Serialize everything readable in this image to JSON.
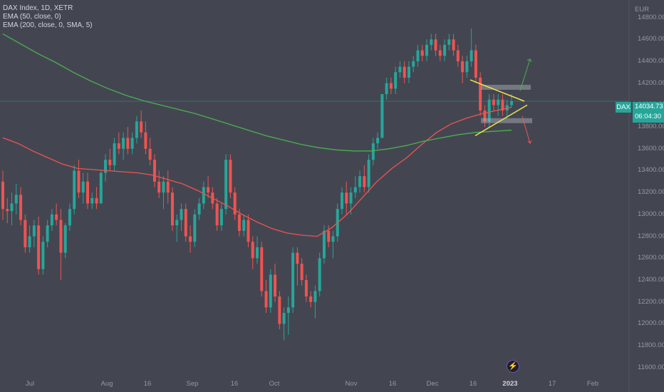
{
  "legend": {
    "symbol_line": "DAX Index, 1D, XETR",
    "ema_line": "EMA (50, close, 0)",
    "ema200_line": "EMA (200, close, 0, SMA, 5)"
  },
  "price_label": {
    "ticker": "DAX",
    "value": "14034.73",
    "countdown": "06:04:30"
  },
  "event_icon": "lightning-icon",
  "colors": {
    "background": "#434651",
    "up": "#26a69a",
    "down": "#ef5350",
    "ema50": "#ef5350",
    "ema200": "#4caf50",
    "pattern": "#f2e54b"
  },
  "chart_data": {
    "type": "candlestick",
    "unit": "EUR",
    "ylim": [
      11540,
      14960
    ],
    "y_ticks": [
      "14800.00",
      "14600.00",
      "14400.00",
      "14200.00",
      "14000.00",
      "13800.00",
      "13600.00",
      "13400.00",
      "13200.00",
      "13000.00",
      "12800.00",
      "12600.00",
      "12400.00",
      "12200.00",
      "12000.00",
      "11800.00",
      "11600.00"
    ],
    "x_ticks": [
      {
        "label": "Jul",
        "bold": false
      },
      {
        "label": "Aug",
        "bold": false
      },
      {
        "label": "16",
        "bold": false
      },
      {
        "label": "Sep",
        "bold": false
      },
      {
        "label": "16",
        "bold": false
      },
      {
        "label": "Oct",
        "bold": false
      },
      {
        "label": "Nov",
        "bold": false
      },
      {
        "label": "16",
        "bold": false
      },
      {
        "label": "Dec",
        "bold": false
      },
      {
        "label": "16",
        "bold": false
      },
      {
        "label": "2023",
        "bold": true
      },
      {
        "label": "17",
        "bold": false
      },
      {
        "label": "Feb",
        "bold": false
      }
    ],
    "ohlc": [
      [
        13300,
        13400,
        12950,
        13050
      ],
      [
        13050,
        13150,
        12920,
        13030
      ],
      [
        13030,
        13200,
        12900,
        13100
      ],
      [
        13100,
        13280,
        13000,
        13180
      ],
      [
        13180,
        13250,
        12900,
        12950
      ],
      [
        12950,
        13000,
        12650,
        12700
      ],
      [
        12700,
        12900,
        12650,
        12800
      ],
      [
        12800,
        12950,
        12700,
        12900
      ],
      [
        12900,
        12980,
        12450,
        12500
      ],
      [
        12500,
        12800,
        12450,
        12750
      ],
      [
        12750,
        12950,
        12700,
        12900
      ],
      [
        12900,
        13050,
        12850,
        13000
      ],
      [
        13000,
        13100,
        12900,
        12950
      ],
      [
        12950,
        13050,
        12400,
        12650
      ],
      [
        12650,
        12920,
        12600,
        12900
      ],
      [
        12900,
        13100,
        12850,
        13050
      ],
      [
        13050,
        13450,
        13000,
        13400
      ],
      [
        13400,
        13500,
        13150,
        13200
      ],
      [
        13200,
        13380,
        13100,
        13300
      ],
      [
        13300,
        13380,
        13050,
        13100
      ],
      [
        13100,
        13200,
        13050,
        13150
      ],
      [
        13150,
        13250,
        13050,
        13100
      ],
      [
        13100,
        13400,
        13100,
        13380
      ],
      [
        13380,
        13550,
        13300,
        13500
      ],
      [
        13500,
        13600,
        13400,
        13450
      ],
      [
        13450,
        13700,
        13400,
        13650
      ],
      [
        13650,
        13750,
        13550,
        13600
      ],
      [
        13600,
        13750,
        13500,
        13700
      ],
      [
        13700,
        13800,
        13550,
        13600
      ],
      [
        13600,
        13750,
        13550,
        13700
      ],
      [
        13700,
        13900,
        13650,
        13850
      ],
      [
        13850,
        13950,
        13700,
        13750
      ],
      [
        13750,
        13850,
        13550,
        13600
      ],
      [
        13600,
        13700,
        13450,
        13500
      ],
      [
        13500,
        13550,
        13250,
        13300
      ],
      [
        13300,
        13400,
        13150,
        13200
      ],
      [
        13200,
        13350,
        13050,
        13300
      ],
      [
        13300,
        13400,
        13100,
        13200
      ],
      [
        13200,
        13250,
        12850,
        12900
      ],
      [
        12900,
        13000,
        12750,
        12950
      ],
      [
        12950,
        13100,
        12850,
        13050
      ],
      [
        13050,
        13100,
        12750,
        12800
      ],
      [
        12800,
        12900,
        12650,
        12750
      ],
      [
        12750,
        13050,
        12700,
        13000
      ],
      [
        13000,
        13150,
        12950,
        13100
      ],
      [
        13100,
        13300,
        13050,
        13250
      ],
      [
        13250,
        13350,
        13150,
        13200
      ],
      [
        13200,
        13250,
        13050,
        13100
      ],
      [
        13100,
        13150,
        12850,
        12900
      ],
      [
        12900,
        13100,
        12850,
        13050
      ],
      [
        13050,
        13550,
        13000,
        13500
      ],
      [
        13500,
        13550,
        13150,
        13200
      ],
      [
        13200,
        13250,
        12950,
        13000
      ],
      [
        13000,
        13050,
        12800,
        12850
      ],
      [
        12850,
        13000,
        12800,
        12950
      ],
      [
        12950,
        13000,
        12700,
        12750
      ],
      [
        12750,
        12800,
        12500,
        12600
      ],
      [
        12600,
        12800,
        12550,
        12700
      ],
      [
        12700,
        12750,
        12250,
        12300
      ],
      [
        12300,
        12400,
        12100,
        12150
      ],
      [
        12150,
        12500,
        12100,
        12450
      ],
      [
        12450,
        12550,
        12200,
        12250
      ],
      [
        12250,
        12300,
        11950,
        12000
      ],
      [
        12000,
        12150,
        11850,
        12100
      ],
      [
        12100,
        12250,
        11900,
        12150
      ],
      [
        12150,
        12700,
        12100,
        12650
      ],
      [
        12650,
        12700,
        12350,
        12550
      ],
      [
        12550,
        12600,
        12350,
        12400
      ],
      [
        12400,
        12450,
        12200,
        12250
      ],
      [
        12250,
        12300,
        12150,
        12200
      ],
      [
        12200,
        12350,
        12050,
        12300
      ],
      [
        12300,
        12650,
        12250,
        12600
      ],
      [
        12600,
        12900,
        12550,
        12850
      ],
      [
        12850,
        12900,
        12700,
        12750
      ],
      [
        12750,
        12850,
        12600,
        12800
      ],
      [
        12800,
        13100,
        12750,
        13050
      ],
      [
        13050,
        13250,
        13000,
        13200
      ],
      [
        13200,
        13300,
        13000,
        13100
      ],
      [
        13100,
        13250,
        13000,
        13200
      ],
      [
        13200,
        13350,
        13150,
        13250
      ],
      [
        13250,
        13400,
        13200,
        13350
      ],
      [
        13350,
        13450,
        13200,
        13250
      ],
      [
        13250,
        13550,
        13200,
        13500
      ],
      [
        13500,
        13700,
        13450,
        13650
      ],
      [
        13650,
        13750,
        13600,
        13700
      ],
      [
        13700,
        14100,
        13700,
        14100
      ],
      [
        14100,
        14250,
        14050,
        14200
      ],
      [
        14200,
        14250,
        14100,
        14150
      ],
      [
        14150,
        14350,
        14100,
        14300
      ],
      [
        14300,
        14400,
        14250,
        14350
      ],
      [
        14350,
        14400,
        14200,
        14250
      ],
      [
        14250,
        14400,
        14200,
        14350
      ],
      [
        14350,
        14450,
        14300,
        14400
      ],
      [
        14400,
        14550,
        14350,
        14500
      ],
      [
        14500,
        14550,
        14400,
        14450
      ],
      [
        14450,
        14600,
        14400,
        14550
      ],
      [
        14550,
        14650,
        14500,
        14600
      ],
      [
        14600,
        14650,
        14450,
        14500
      ],
      [
        14500,
        14550,
        14400,
        14450
      ],
      [
        14450,
        14600,
        14400,
        14550
      ],
      [
        14550,
        14650,
        14500,
        14600
      ],
      [
        14600,
        14650,
        14450,
        14500
      ],
      [
        14500,
        14550,
        14350,
        14400
      ],
      [
        14400,
        14450,
        14200,
        14300
      ],
      [
        14300,
        14450,
        14250,
        14400
      ],
      [
        14400,
        14700,
        14350,
        14500
      ],
      [
        14500,
        14550,
        14200,
        14250
      ],
      [
        14250,
        14300,
        13900,
        13950
      ],
      [
        13950,
        14000,
        13800,
        13850
      ],
      [
        13850,
        14100,
        13800,
        14050
      ],
      [
        14050,
        14100,
        13950,
        14000
      ],
      [
        14000,
        14100,
        13900,
        14050
      ],
      [
        14050,
        14100,
        13900,
        13950
      ],
      [
        13950,
        14050,
        13880,
        14000
      ],
      [
        14000,
        14100,
        13980,
        14035
      ]
    ],
    "series": [
      {
        "name": "EMA (50, close, 0)",
        "values": [
          13700,
          13650,
          13580,
          13520,
          13460,
          13420,
          13410,
          13400,
          13390,
          13380,
          13360,
          13320,
          13280,
          13220,
          13150,
          13080,
          13000,
          12930,
          12870,
          12830,
          12810,
          12800,
          12880,
          13000,
          13150,
          13300,
          13420,
          13520,
          13640,
          13750,
          13830,
          13880,
          13920,
          13950,
          13980
        ]
      },
      {
        "name": "EMA (200, close, 0, SMA, 5)",
        "values": [
          14650,
          14560,
          14470,
          14390,
          14300,
          14220,
          14150,
          14090,
          14040,
          14000,
          13960,
          13920,
          13870,
          13820,
          13770,
          13720,
          13680,
          13640,
          13610,
          13590,
          13580,
          13580,
          13600,
          13630,
          13670,
          13700,
          13730,
          13750,
          13760,
          13770
        ]
      }
    ]
  }
}
